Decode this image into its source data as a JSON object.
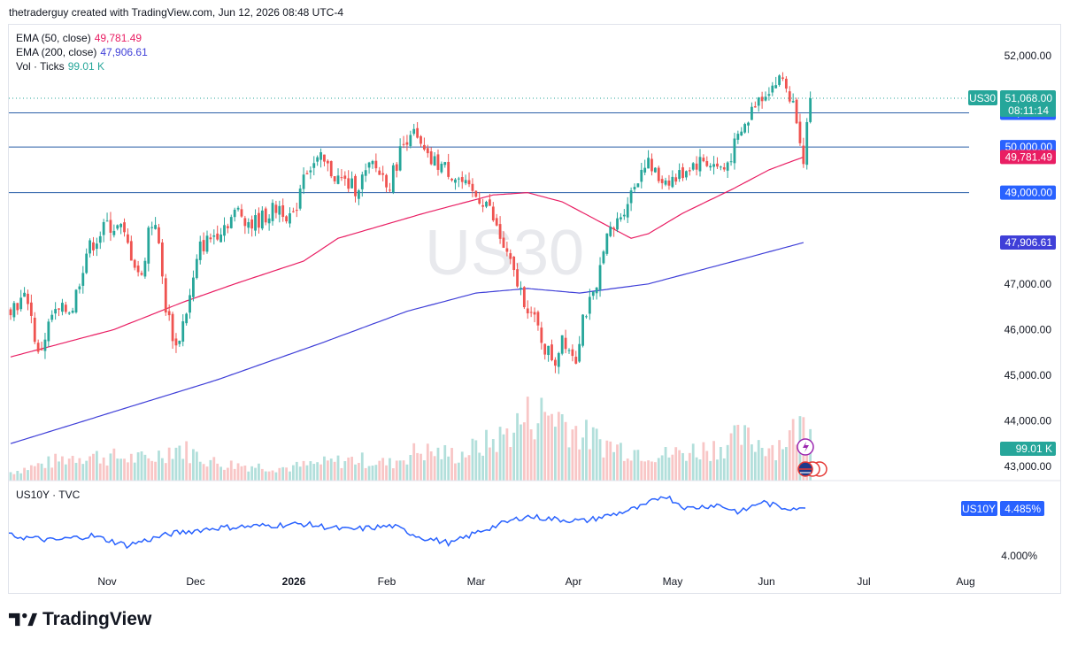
{
  "header": {
    "attribution": "thetraderguy created with TradingView.com, Jun 12, 2026 08:48 UTC-4"
  },
  "legend": {
    "ema50": {
      "label": "EMA (50, close)",
      "value": "49,781.49",
      "color": "#e91e63"
    },
    "ema200": {
      "label": "EMA (200, close)",
      "value": "47,906.61",
      "color": "#3f3fd8"
    },
    "vol": {
      "label": "Vol · Ticks",
      "value": "99.01 K",
      "color": "#26a69a"
    }
  },
  "watermark": "US30",
  "price_axis": {
    "ticks": [
      "52,000.00",
      "47,000.00",
      "46,000.00",
      "45,000.00",
      "44,000.00",
      "43,000.00"
    ],
    "tick_values": [
      52000,
      47000,
      46000,
      45000,
      44000,
      43000
    ],
    "labels": [
      {
        "text": "50,750.00",
        "value": 50750,
        "bg": "#2962ff"
      },
      {
        "text": "50,000.00",
        "value": 50000,
        "bg": "#2962ff"
      },
      {
        "text": "49,781.49",
        "value": 49781.49,
        "bg": "#e91e63"
      },
      {
        "text": "49,000.00",
        "value": 49000,
        "bg": "#2962ff"
      },
      {
        "text": "47,906.61",
        "value": 47906.61,
        "bg": "#3f3fd8"
      },
      {
        "text": "99.01 K",
        "value": 43290,
        "bg": "#26a69a"
      }
    ],
    "last_price": {
      "symbol": "US30",
      "price": "51,068.00",
      "countdown": "08:11:14"
    }
  },
  "horizontal_levels": [
    50750,
    50000,
    49000
  ],
  "lower_pane": {
    "title": "US10Y · TVC",
    "badge_symbol": "US10Y",
    "badge_value": "4.485%",
    "tick": "4.000%"
  },
  "x_axis": {
    "labels": [
      "Nov",
      "Dec",
      "2026",
      "Feb",
      "Mar",
      "Apr",
      "May",
      "Jun",
      "Jul",
      "Aug"
    ]
  },
  "footer": {
    "brand": "TradingView"
  },
  "chart_data": {
    "type": "candlestick",
    "symbol": "US30",
    "ylim": [
      42700,
      52600
    ],
    "series": [
      {
        "name": "EMA (50, close)",
        "waypoints": [
          [
            0,
            45400
          ],
          [
            30,
            46000
          ],
          [
            50,
            46600
          ],
          [
            65,
            47000
          ],
          [
            85,
            47500
          ],
          [
            95,
            48000
          ],
          [
            120,
            48550
          ],
          [
            140,
            48950
          ],
          [
            150,
            49000
          ],
          [
            160,
            48800
          ],
          [
            170,
            48400
          ],
          [
            180,
            48000
          ],
          [
            185,
            48100
          ],
          [
            195,
            48550
          ],
          [
            210,
            49100
          ],
          [
            220,
            49500
          ],
          [
            230,
            49781
          ]
        ]
      },
      {
        "name": "EMA (200, close)",
        "waypoints": [
          [
            0,
            43500
          ],
          [
            30,
            44200
          ],
          [
            60,
            44900
          ],
          [
            90,
            45700
          ],
          [
            115,
            46400
          ],
          [
            135,
            46800
          ],
          [
            150,
            46900
          ],
          [
            165,
            46800
          ],
          [
            185,
            47000
          ],
          [
            210,
            47500
          ],
          [
            230,
            47906
          ]
        ]
      }
    ],
    "candles_waypoints": [
      [
        0,
        46500
      ],
      [
        5,
        46700
      ],
      [
        8,
        45400
      ],
      [
        12,
        46300
      ],
      [
        18,
        46500
      ],
      [
        22,
        47700
      ],
      [
        28,
        48300
      ],
      [
        32,
        48200
      ],
      [
        38,
        47100
      ],
      [
        40,
        48200
      ],
      [
        42,
        48400
      ],
      [
        45,
        46500
      ],
      [
        48,
        45600
      ],
      [
        52,
        46700
      ],
      [
        55,
        47800
      ],
      [
        58,
        48000
      ],
      [
        62,
        48300
      ],
      [
        66,
        48600
      ],
      [
        70,
        48300
      ],
      [
        78,
        48700
      ],
      [
        82,
        48400
      ],
      [
        85,
        49500
      ],
      [
        90,
        49700
      ],
      [
        95,
        49300
      ],
      [
        100,
        49100
      ],
      [
        105,
        49600
      ],
      [
        110,
        49200
      ],
      [
        113,
        49900
      ],
      [
        116,
        50400
      ],
      [
        118,
        50100
      ],
      [
        121,
        49700
      ],
      [
        125,
        49600
      ],
      [
        130,
        49300
      ],
      [
        133,
        49000
      ],
      [
        138,
        48800
      ],
      [
        142,
        48000
      ],
      [
        145,
        47400
      ],
      [
        147,
        47000
      ],
      [
        150,
        46500
      ],
      [
        153,
        46000
      ],
      [
        155,
        45600
      ],
      [
        158,
        45300
      ],
      [
        160,
        45900
      ],
      [
        162,
        45600
      ],
      [
        164,
        45400
      ],
      [
        166,
        46300
      ],
      [
        170,
        46800
      ],
      [
        172,
        47900
      ],
      [
        175,
        48200
      ],
      [
        180,
        49000
      ],
      [
        184,
        49700
      ],
      [
        188,
        49300
      ],
      [
        193,
        49300
      ],
      [
        197,
        49600
      ],
      [
        201,
        49700
      ],
      [
        204,
        49600
      ],
      [
        207,
        49500
      ],
      [
        210,
        50000
      ],
      [
        214,
        50600
      ],
      [
        216,
        51000
      ],
      [
        220,
        51300
      ],
      [
        224,
        51500
      ],
      [
        228,
        50700
      ],
      [
        230,
        49800
      ],
      [
        232,
        51068
      ]
    ],
    "volume_waypoints": [
      [
        0,
        43200
      ],
      [
        20,
        43600
      ],
      [
        40,
        43500
      ],
      [
        48,
        43800
      ],
      [
        60,
        43400
      ],
      [
        80,
        43300
      ],
      [
        100,
        43500
      ],
      [
        110,
        43400
      ],
      [
        118,
        43700
      ],
      [
        130,
        43600
      ],
      [
        142,
        44000
      ],
      [
        150,
        44500
      ],
      [
        158,
        44600
      ],
      [
        165,
        44100
      ],
      [
        175,
        43800
      ],
      [
        190,
        43600
      ],
      [
        205,
        43800
      ],
      [
        212,
        44000
      ],
      [
        222,
        43800
      ],
      [
        228,
        44200
      ],
      [
        232,
        44450
      ]
    ],
    "us10y_waypoints": [
      [
        0,
        4.2
      ],
      [
        15,
        4.15
      ],
      [
        28,
        4.2
      ],
      [
        40,
        4.1
      ],
      [
        55,
        4.22
      ],
      [
        70,
        4.28
      ],
      [
        85,
        4.3
      ],
      [
        100,
        4.32
      ],
      [
        115,
        4.26
      ],
      [
        130,
        4.3
      ],
      [
        140,
        4.18
      ],
      [
        150,
        4.12
      ],
      [
        160,
        4.25
      ],
      [
        175,
        4.4
      ],
      [
        185,
        4.37
      ],
      [
        195,
        4.35
      ],
      [
        205,
        4.42
      ],
      [
        215,
        4.5
      ],
      [
        222,
        4.62
      ],
      [
        230,
        4.48
      ],
      [
        240,
        4.52
      ],
      [
        248,
        4.44
      ],
      [
        255,
        4.55
      ],
      [
        262,
        4.49
      ],
      [
        270,
        4.485
      ]
    ]
  }
}
